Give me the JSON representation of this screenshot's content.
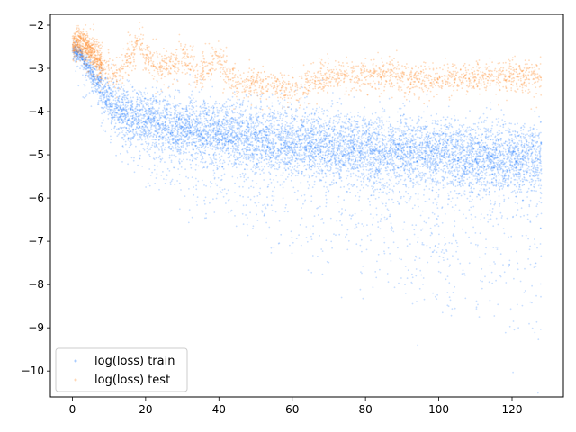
{
  "chart_data": {
    "type": "scatter",
    "title": "",
    "xlabel": "",
    "ylabel": "",
    "xlim": [
      -6,
      134
    ],
    "ylim": [
      -10.6,
      -1.75
    ],
    "xticks": [
      0,
      20,
      40,
      60,
      80,
      100,
      120
    ],
    "yticks": [
      -2,
      -3,
      -4,
      -5,
      -6,
      -7,
      -8,
      -9,
      -10
    ],
    "grid": false,
    "legend": {
      "placement": "bottom-left"
    },
    "series": [
      {
        "name": "log(loss) train",
        "color": "#0a6eff",
        "x_range": [
          0,
          128
        ],
        "trend": {
          "x": [
            0,
            2,
            4,
            6,
            8,
            10,
            15,
            20,
            30,
            40,
            60,
            80,
            100,
            120,
            128
          ],
          "y": [
            -2.6,
            -2.65,
            -2.9,
            -3.2,
            -3.5,
            -3.75,
            -4.0,
            -4.15,
            -4.35,
            -4.5,
            -4.7,
            -4.85,
            -4.95,
            -5.05,
            -5.1
          ]
        },
        "lower_envelope": {
          "x": [
            0,
            5,
            10,
            20,
            40,
            60,
            80,
            100,
            120,
            128
          ],
          "y": [
            -2.9,
            -3.4,
            -4.6,
            -5.4,
            -6.2,
            -6.9,
            -7.5,
            -8.2,
            -8.8,
            -9.3
          ]
        },
        "upper_envelope": {
          "x": [
            0,
            5,
            10,
            20,
            40,
            60,
            80,
            100,
            120,
            128
          ],
          "y": [
            -2.3,
            -2.7,
            -3.1,
            -3.4,
            -3.6,
            -3.8,
            -3.9,
            -4.0,
            -4.1,
            -4.2
          ]
        }
      },
      {
        "name": "log(loss) test",
        "color": "#ff8c2a",
        "x_range": [
          0,
          128
        ],
        "trend": {
          "x": [
            0,
            2,
            5,
            8,
            12,
            18,
            20,
            25,
            30,
            35,
            40,
            45,
            50,
            60,
            70,
            80,
            90,
            100,
            110,
            120,
            128
          ],
          "y": [
            -2.5,
            -2.4,
            -2.6,
            -2.9,
            -3.2,
            -2.4,
            -2.7,
            -3.0,
            -2.7,
            -3.1,
            -2.8,
            -3.4,
            -3.3,
            -3.5,
            -3.2,
            -3.1,
            -3.2,
            -3.3,
            -3.2,
            -3.2,
            -3.2
          ]
        }
      }
    ]
  }
}
